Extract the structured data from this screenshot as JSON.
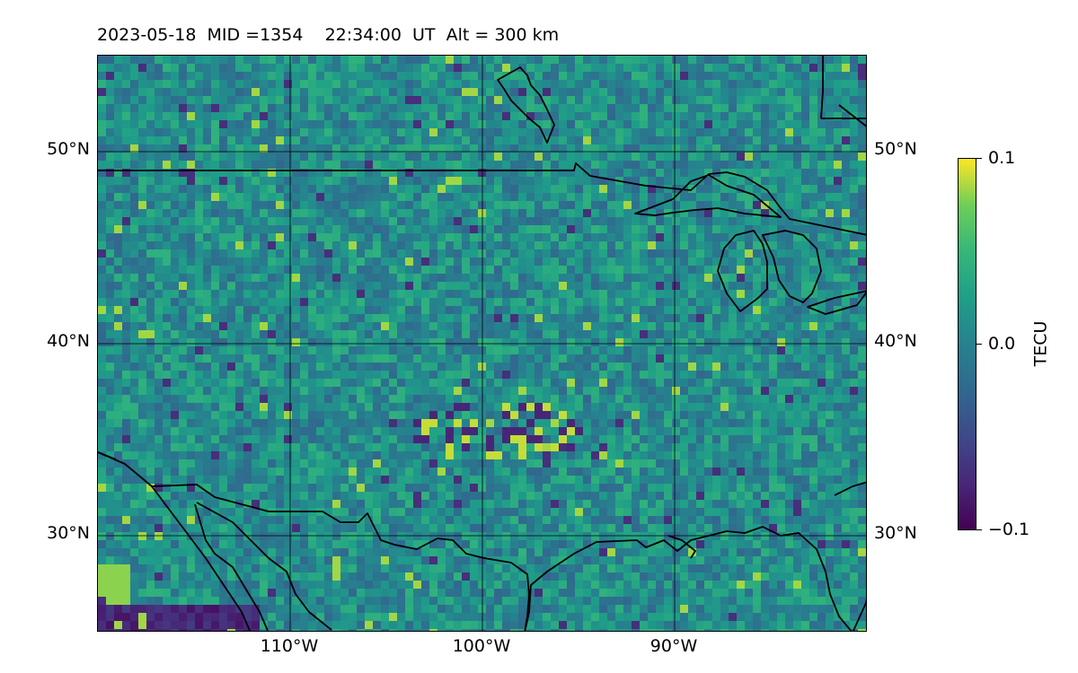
{
  "title": "2023-05-18  MID =1354    22:34:00  UT  Alt = 300 km",
  "map": {
    "lon_range": [
      -120,
      -80
    ],
    "lat_range": [
      25,
      55
    ],
    "lat_ticks": [
      "50°N",
      "40°N",
      "30°N"
    ],
    "lon_ticks": [
      "110°W",
      "100°W",
      "90°W"
    ],
    "coastline_color": "#000000",
    "gridline_color": "#000000"
  },
  "colorbar": {
    "label": "TECU",
    "ticks": [
      "0.1",
      "0.0",
      "−0.1"
    ],
    "colormap": "viridis",
    "range": [
      -0.1,
      0.1
    ]
  }
}
